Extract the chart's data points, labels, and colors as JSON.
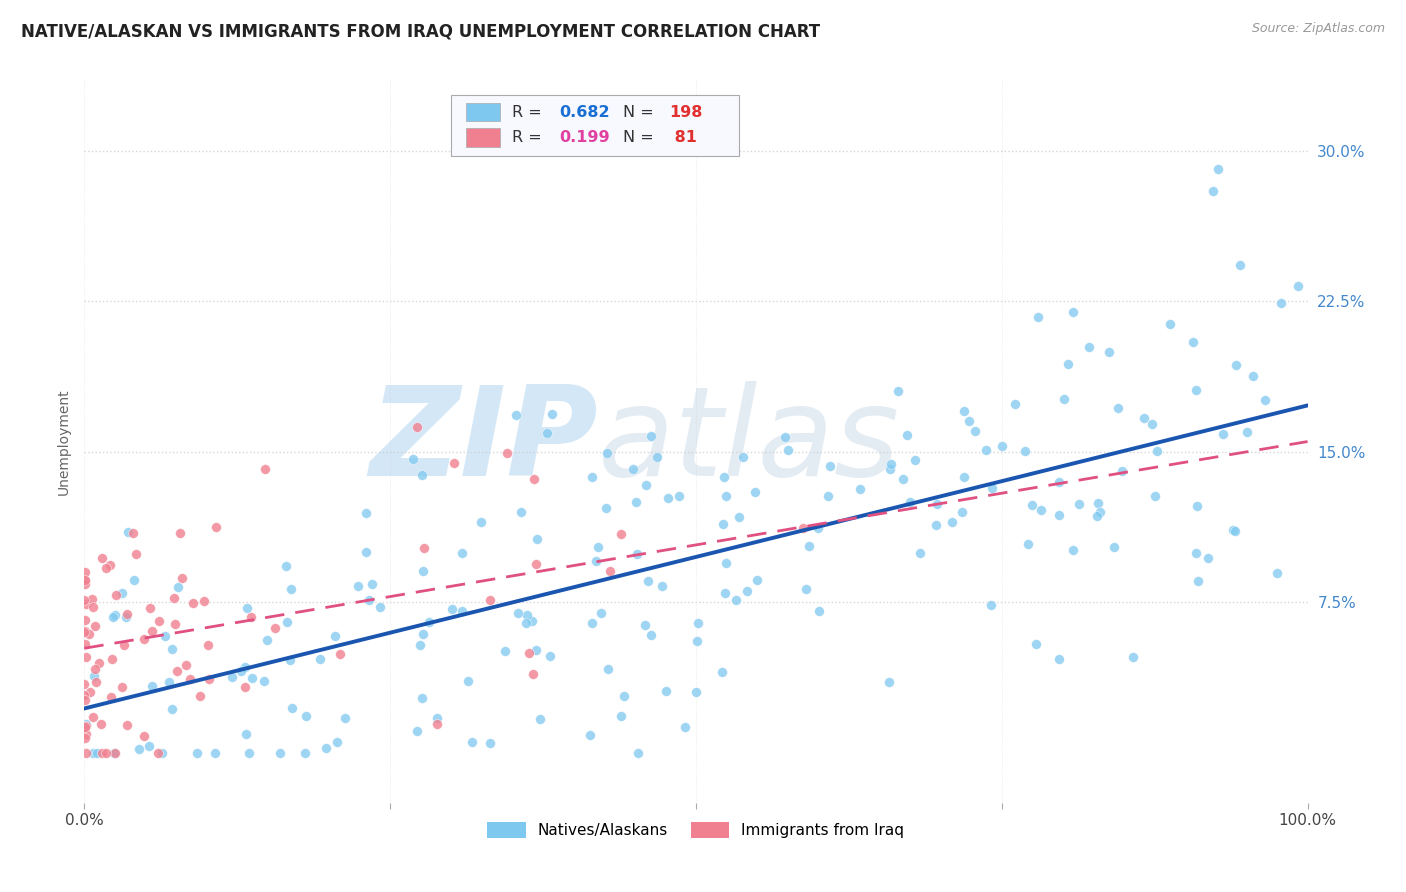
{
  "title": "NATIVE/ALASKAN VS IMMIGRANTS FROM IRAQ UNEMPLOYMENT CORRELATION CHART",
  "source": "Source: ZipAtlas.com",
  "ylabel": "Unemployment",
  "xlim": [
    0.0,
    1.0
  ],
  "ylim": [
    -0.025,
    0.335
  ],
  "xticks": [
    0.0,
    0.25,
    0.5,
    0.75,
    1.0
  ],
  "xtick_labels": [
    "0.0%",
    "",
    "",
    "",
    "100.0%"
  ],
  "yticks": [
    0.075,
    0.15,
    0.225,
    0.3
  ],
  "ytick_labels": [
    "7.5%",
    "15.0%",
    "22.5%",
    "30.0%"
  ],
  "blue_N": 198,
  "pink_N": 81,
  "blue_color": "#7ec8f0",
  "pink_color": "#f08090",
  "blue_label": "Natives/Alaskans",
  "pink_label": "Immigrants from Iraq",
  "blue_line_color": "#1a56b0",
  "pink_line_color": "#e05080",
  "watermark_zip_color": "#b8d8f0",
  "watermark_atlas_color": "#c8d8e8",
  "background_color": "#ffffff",
  "title_fontsize": 12,
  "legend_R_color_blue": "#1a6fd4",
  "legend_R_color_pink": "#e040a0",
  "legend_N_color_blue": "#e03030",
  "legend_N_color_pink": "#e03030",
  "blue_trend_x0": 0.0,
  "blue_trend_y0": 0.022,
  "blue_trend_x1": 1.0,
  "blue_trend_y1": 0.173,
  "pink_trend_x0": 0.0,
  "pink_trend_y0": 0.052,
  "pink_trend_x1": 1.0,
  "pink_trend_y1": 0.155
}
